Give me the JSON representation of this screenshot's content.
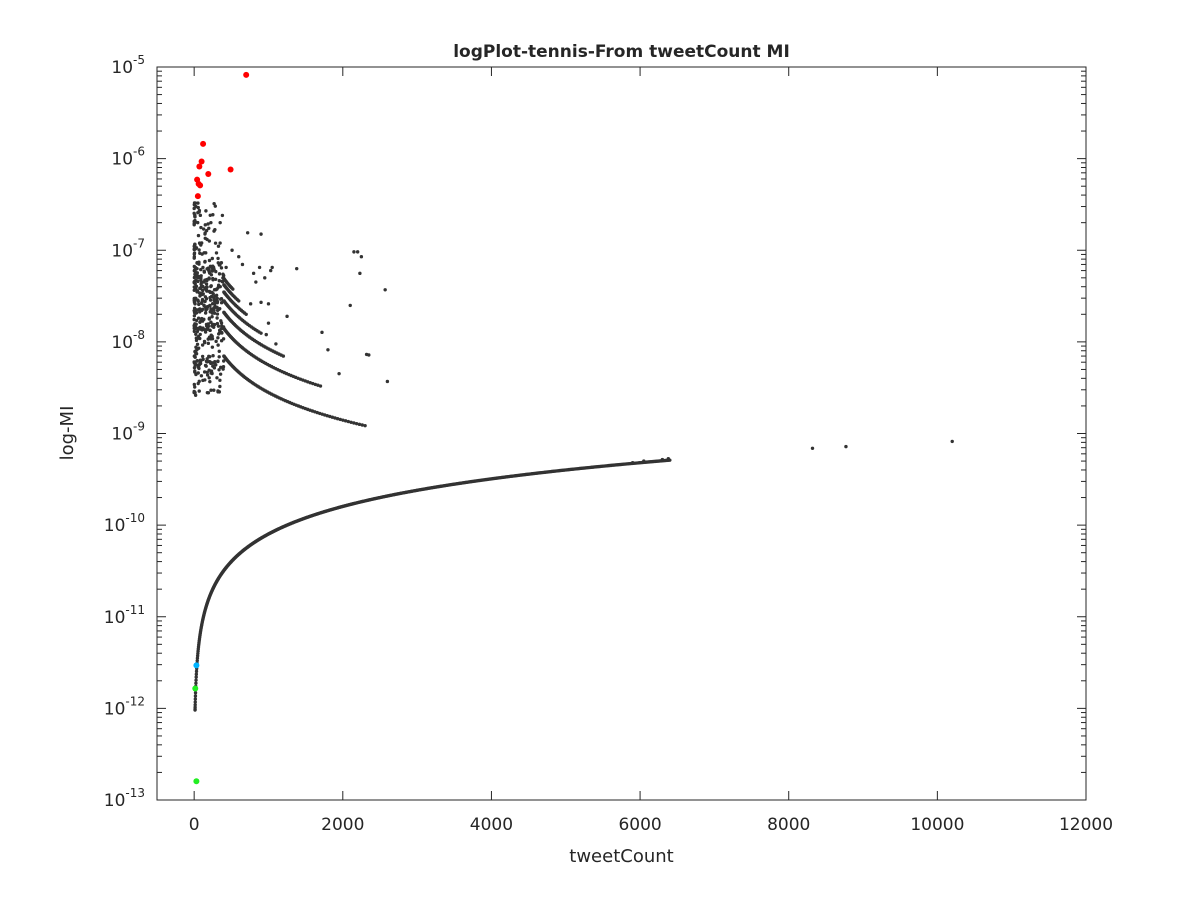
{
  "chart_data": {
    "type": "scatter",
    "title": "logPlot-tennis-From tweetCount MI",
    "xlabel": "tweetCount",
    "ylabel": "log-MI",
    "xlim": [
      -500,
      12000
    ],
    "ylim": [
      1e-13,
      1e-05
    ],
    "yscale": "log",
    "grid": false,
    "x_ticks": [
      {
        "value": 0,
        "label": "0"
      },
      {
        "value": 2000,
        "label": "2000"
      },
      {
        "value": 4000,
        "label": "4000"
      },
      {
        "value": 6000,
        "label": "6000"
      },
      {
        "value": 8000,
        "label": "8000"
      },
      {
        "value": 10000,
        "label": "10000"
      },
      {
        "value": 12000,
        "label": "12000"
      }
    ],
    "y_ticks": [
      {
        "value": 1e-13,
        "base": "10",
        "exp": "-13"
      },
      {
        "value": 1e-12,
        "base": "10",
        "exp": "-12"
      },
      {
        "value": 1e-11,
        "base": "10",
        "exp": "-11"
      },
      {
        "value": 1e-10,
        "base": "10",
        "exp": "-10"
      },
      {
        "value": 1e-09,
        "base": "10",
        "exp": "-9"
      },
      {
        "value": 1e-08,
        "base": "10",
        "exp": "-8"
      },
      {
        "value": 1e-07,
        "base": "10",
        "exp": "-7"
      },
      {
        "value": 1e-06,
        "base": "10",
        "exp": "-6"
      },
      {
        "value": 1e-05,
        "base": "10",
        "exp": "-5"
      }
    ],
    "colors": {
      "main": "#333333",
      "top": "#ff0000",
      "cyan": "#00b4ff",
      "green": "#22ee22",
      "axis": "#262626"
    },
    "series": [
      {
        "color": "#333333",
        "curves": [
          {
            "formula": "a*x",
            "a": 8e-14,
            "x_range": [
              12,
              6400
            ],
            "count": 520
          },
          {
            "formula": "a/x",
            "a": 2.8e-06,
            "x_range": [
              400,
              2300
            ],
            "count": 80
          },
          {
            "formula": "a/x",
            "a": 5.6e-06,
            "x_range": [
              400,
              1700
            ],
            "count": 60
          },
          {
            "formula": "a/x",
            "a": 8.4e-06,
            "x_range": [
              400,
              1200
            ],
            "count": 45
          },
          {
            "formula": "a/x",
            "a": 1.12e-05,
            "x_range": [
              400,
              900
            ],
            "count": 30
          },
          {
            "formula": "a/x",
            "a": 1.4e-05,
            "x_range": [
              400,
              700
            ],
            "count": 22
          },
          {
            "formula": "a/x",
            "a": 1.68e-05,
            "x_range": [
              400,
              600
            ],
            "count": 16
          },
          {
            "formula": "a/x",
            "a": 1.96e-05,
            "x_range": [
              400,
              520
            ],
            "count": 12
          }
        ],
        "stacks": [
          {
            "x_range": [
              0,
              400
            ],
            "y_range": [
              2.5e-09,
              7e-09
            ],
            "count": 70
          },
          {
            "x_range": [
              0,
              400
            ],
            "y_range": [
              5e-09,
              1.5e-08
            ],
            "count": 60
          },
          {
            "x_range": [
              0,
              400
            ],
            "y_range": [
              1e-08,
              2.3e-08
            ],
            "count": 50
          },
          {
            "x_range": [
              0,
              400
            ],
            "y_range": [
              1.5e-08,
              3e-08
            ],
            "count": 45
          },
          {
            "x_range": [
              0,
              400
            ],
            "y_range": [
              2e-08,
              4e-08
            ],
            "count": 40
          },
          {
            "x_range": [
              0,
              400
            ],
            "y_range": [
              3e-08,
              5e-08
            ],
            "count": 40
          },
          {
            "x_range": [
              0,
              400
            ],
            "y_range": [
              4e-08,
              6.5e-08
            ],
            "count": 40
          },
          {
            "x_range": [
              0,
              400
            ],
            "y_range": [
              5e-08,
              1.2e-07
            ],
            "count": 50
          },
          {
            "x_range": [
              0,
              300
            ],
            "y_range": [
              1e-07,
              3.3e-07
            ],
            "count": 45
          }
        ],
        "points": [
          [
            8320,
            6.9e-10
          ],
          [
            8770,
            7.2e-10
          ],
          [
            10200,
            8.2e-10
          ],
          [
            6300,
            5.2e-10
          ],
          [
            6380,
            5.3e-10
          ],
          [
            6050,
            5e-10
          ],
          [
            5900,
            4.8e-10
          ],
          [
            2600,
            3.7e-09
          ],
          [
            2350,
            7.2e-09
          ],
          [
            2320,
            7.3e-09
          ],
          [
            2100,
            2.5e-08
          ],
          [
            2150,
            9.6e-08
          ],
          [
            2200,
            9.6e-08
          ],
          [
            2250,
            8.5e-08
          ],
          [
            2230,
            5.6e-08
          ],
          [
            2570,
            3.7e-08
          ],
          [
            1800,
            8.2e-09
          ],
          [
            1720,
            1.27e-08
          ],
          [
            1950,
            4.5e-09
          ],
          [
            1380,
            6.3e-08
          ],
          [
            1250,
            1.9e-08
          ],
          [
            1050,
            6.5e-08
          ],
          [
            1030,
            6e-08
          ],
          [
            900,
            1.5e-07
          ],
          [
            720,
            1.55e-07
          ],
          [
            510,
            1e-07
          ],
          [
            430,
            6.5e-08
          ],
          [
            880,
            6.5e-08
          ],
          [
            950,
            5e-08
          ],
          [
            800,
            5.6e-08
          ],
          [
            830,
            4.5e-08
          ],
          [
            900,
            2.7e-08
          ],
          [
            1000,
            2.6e-08
          ],
          [
            1000,
            1.6e-08
          ],
          [
            970,
            1.2e-08
          ],
          [
            1100,
            9.5e-09
          ],
          [
            380,
            2.4e-07
          ],
          [
            350,
            2e-07
          ],
          [
            760,
            2.6e-08
          ],
          [
            650,
            7e-08
          ],
          [
            600,
            8.5e-08
          ]
        ]
      },
      {
        "color": "#ff0000",
        "points": [
          [
            700,
            8.2e-06
          ],
          [
            120,
            1.45e-06
          ],
          [
            100,
            9.3e-07
          ],
          [
            70,
            8.2e-07
          ],
          [
            490,
            7.6e-07
          ],
          [
            190,
            6.8e-07
          ],
          [
            40,
            5.9e-07
          ],
          [
            60,
            5.3e-07
          ],
          [
            80,
            5.1e-07
          ],
          [
            50,
            3.9e-07
          ]
        ]
      },
      {
        "color": "#00b4ff",
        "points": [
          [
            30,
            2.95e-12
          ]
        ]
      },
      {
        "color": "#22ee22",
        "points": [
          [
            15,
            1.65e-12
          ],
          [
            30,
            1.6e-13
          ]
        ]
      }
    ]
  }
}
